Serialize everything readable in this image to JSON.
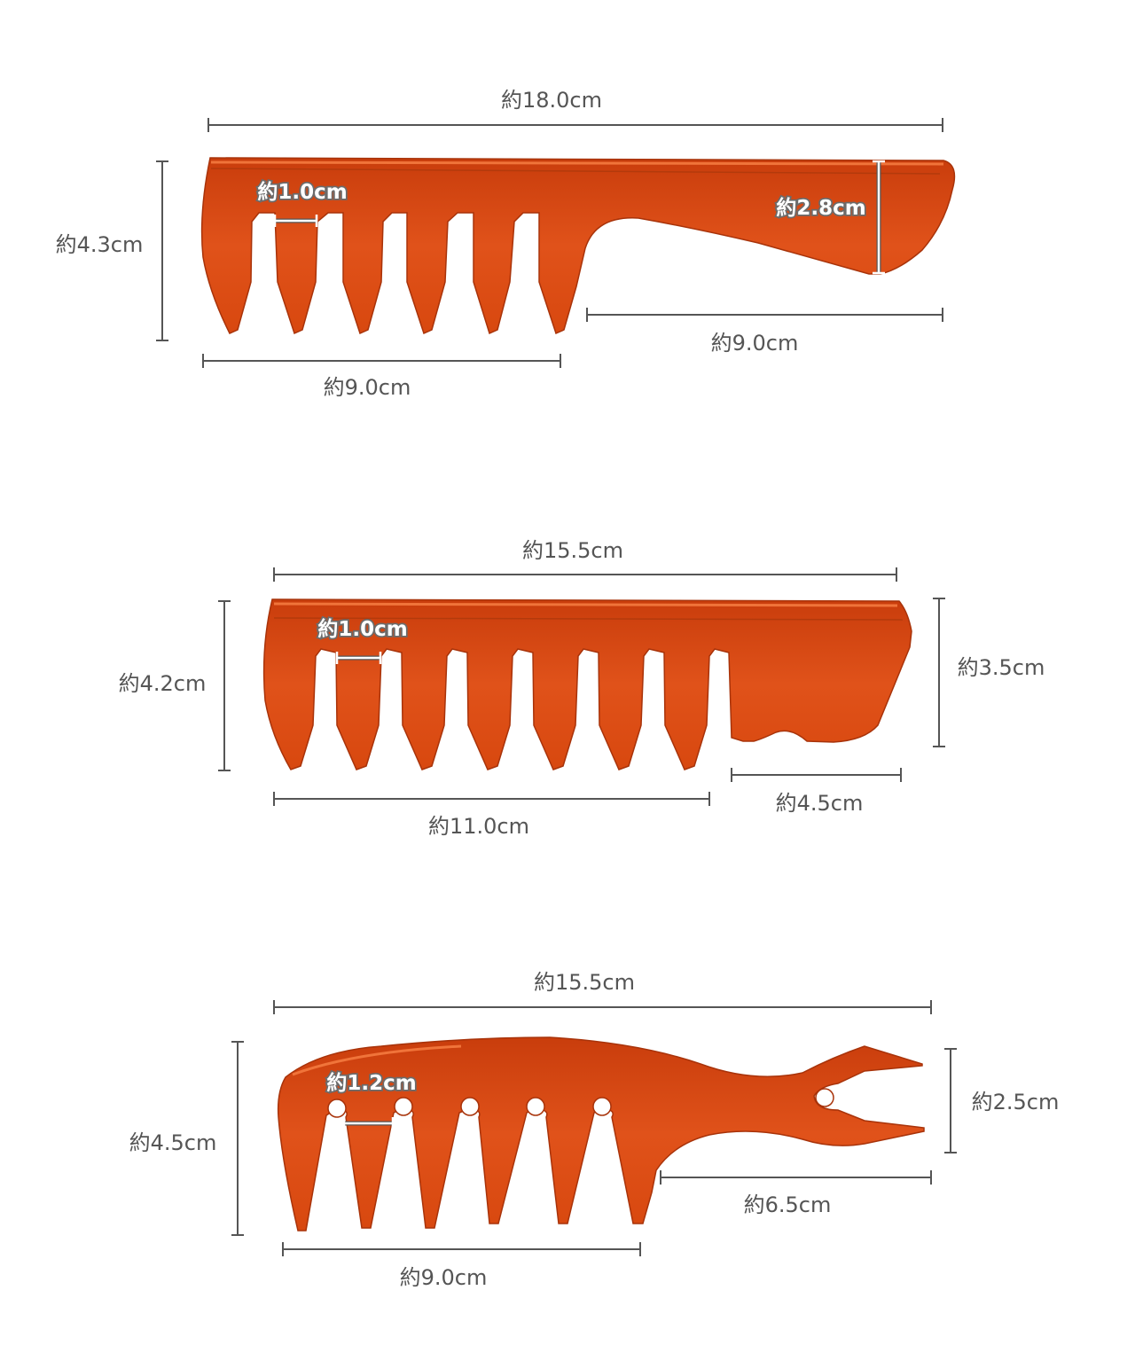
{
  "colors": {
    "comb_fill": "#d84a12",
    "comb_edge": "#a8330a",
    "comb_highlight": "#f0743a",
    "dimension_line": "#555555",
    "label_text": "#555555"
  },
  "combs": [
    {
      "name": "comb-1",
      "overall_length": "約18.0cm",
      "height": "約4.3cm",
      "tooth_gap": "約1.0cm",
      "handle_width": "約2.8cm",
      "handle_length": "約9.0cm",
      "teeth_length": "約9.0cm"
    },
    {
      "name": "comb-2",
      "overall_length": "約15.5cm",
      "height": "約4.2cm",
      "tooth_gap": "約1.0cm",
      "handle_height": "約3.5cm",
      "handle_length": "約4.5cm",
      "teeth_length": "約11.0cm"
    },
    {
      "name": "comb-3",
      "overall_length": "約15.5cm",
      "height": "約4.5cm",
      "tooth_gap": "約1.2cm",
      "pick_width": "約2.5cm",
      "handle_length": "約6.5cm",
      "teeth_length": "約9.0cm"
    }
  ]
}
